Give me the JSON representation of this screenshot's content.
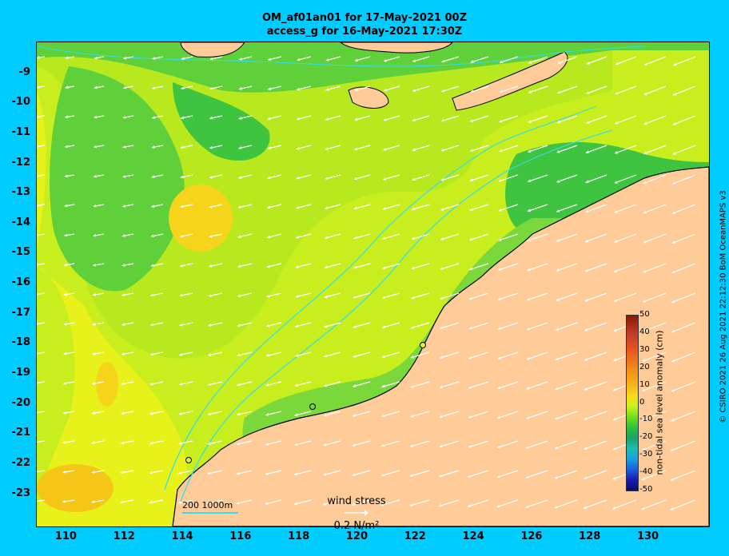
{
  "title": {
    "line1": "OM_af01an01 for 17-May-2021 00Z",
    "line2": "access_g for 16-May-2021 17:30Z"
  },
  "axes": {
    "latitude_labels": [
      "-9",
      "-10",
      "-11",
      "-12",
      "-13",
      "-14",
      "-15",
      "-16",
      "-17",
      "-18",
      "-19",
      "-20",
      "-21",
      "-22",
      "-23"
    ],
    "longitude_labels": [
      "110",
      "112",
      "114",
      "116",
      "118",
      "120",
      "122",
      "124",
      "126",
      "128",
      "130"
    ],
    "lon_range": [
      109.0,
      132.1
    ],
    "lat_range": [
      -8.0,
      -24.1
    ]
  },
  "colorbar": {
    "title": "non-tidal sea level anomaly (cm)",
    "ticks": [
      "50",
      "40",
      "30",
      "20",
      "10",
      "0",
      "-10",
      "-20",
      "-30",
      "-40",
      "-50"
    ]
  },
  "wind_legend": {
    "title": "wind stress",
    "value": "0.2 N/m²"
  },
  "depth_legend": {
    "label": "200  1000m"
  },
  "copyright": "© CSIRO 2021  26 Aug 2021 22:12:30 BoM OceanMAPS v3",
  "colors": {
    "background": "#00ccff",
    "land": "#ffcc99",
    "contour": "#33ddee",
    "field_yellow": "#d9f21a",
    "field_lime": "#a8e61a",
    "field_green": "#3fc43f",
    "field_orange": "#f5c518",
    "arrows": "#ffffff"
  }
}
